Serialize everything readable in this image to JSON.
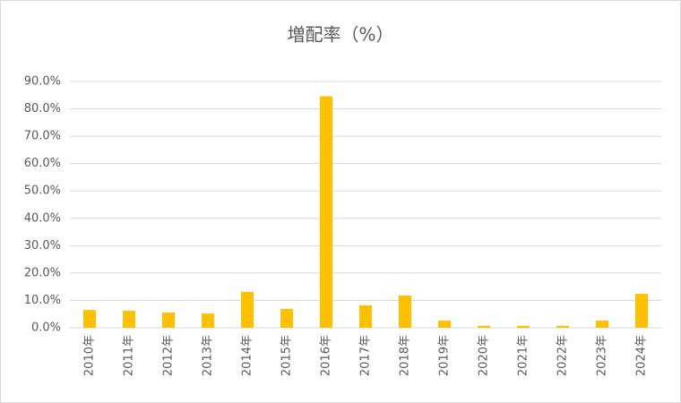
{
  "chart_data": {
    "type": "bar",
    "title": "増配率（%）",
    "categories": [
      "2010年",
      "2011年",
      "2012年",
      "2013年",
      "2014年",
      "2015年",
      "2016年",
      "2017年",
      "2018年",
      "2019年",
      "2020年",
      "2021年",
      "2022年",
      "2023年",
      "2024年"
    ],
    "values": [
      6.5,
      6.2,
      5.6,
      5.2,
      13.1,
      6.9,
      84.6,
      8.2,
      11.8,
      2.6,
      0.7,
      0.7,
      0.7,
      2.6,
      12.4
    ],
    "color": "#ffc000",
    "ylim": [
      0,
      90
    ],
    "yticks": [
      {
        "value": 0,
        "label": "0.0%"
      },
      {
        "value": 10,
        "label": "10.0%"
      },
      {
        "value": 20,
        "label": "20.0%"
      },
      {
        "value": 30,
        "label": "30.0%"
      },
      {
        "value": 40,
        "label": "40.0%"
      },
      {
        "value": 50,
        "label": "50.0%"
      },
      {
        "value": 60,
        "label": "60.0%"
      },
      {
        "value": 70,
        "label": "70.0%"
      },
      {
        "value": 80,
        "label": "80.0%"
      },
      {
        "value": 90,
        "label": "90.0%"
      }
    ],
    "grid": true
  }
}
